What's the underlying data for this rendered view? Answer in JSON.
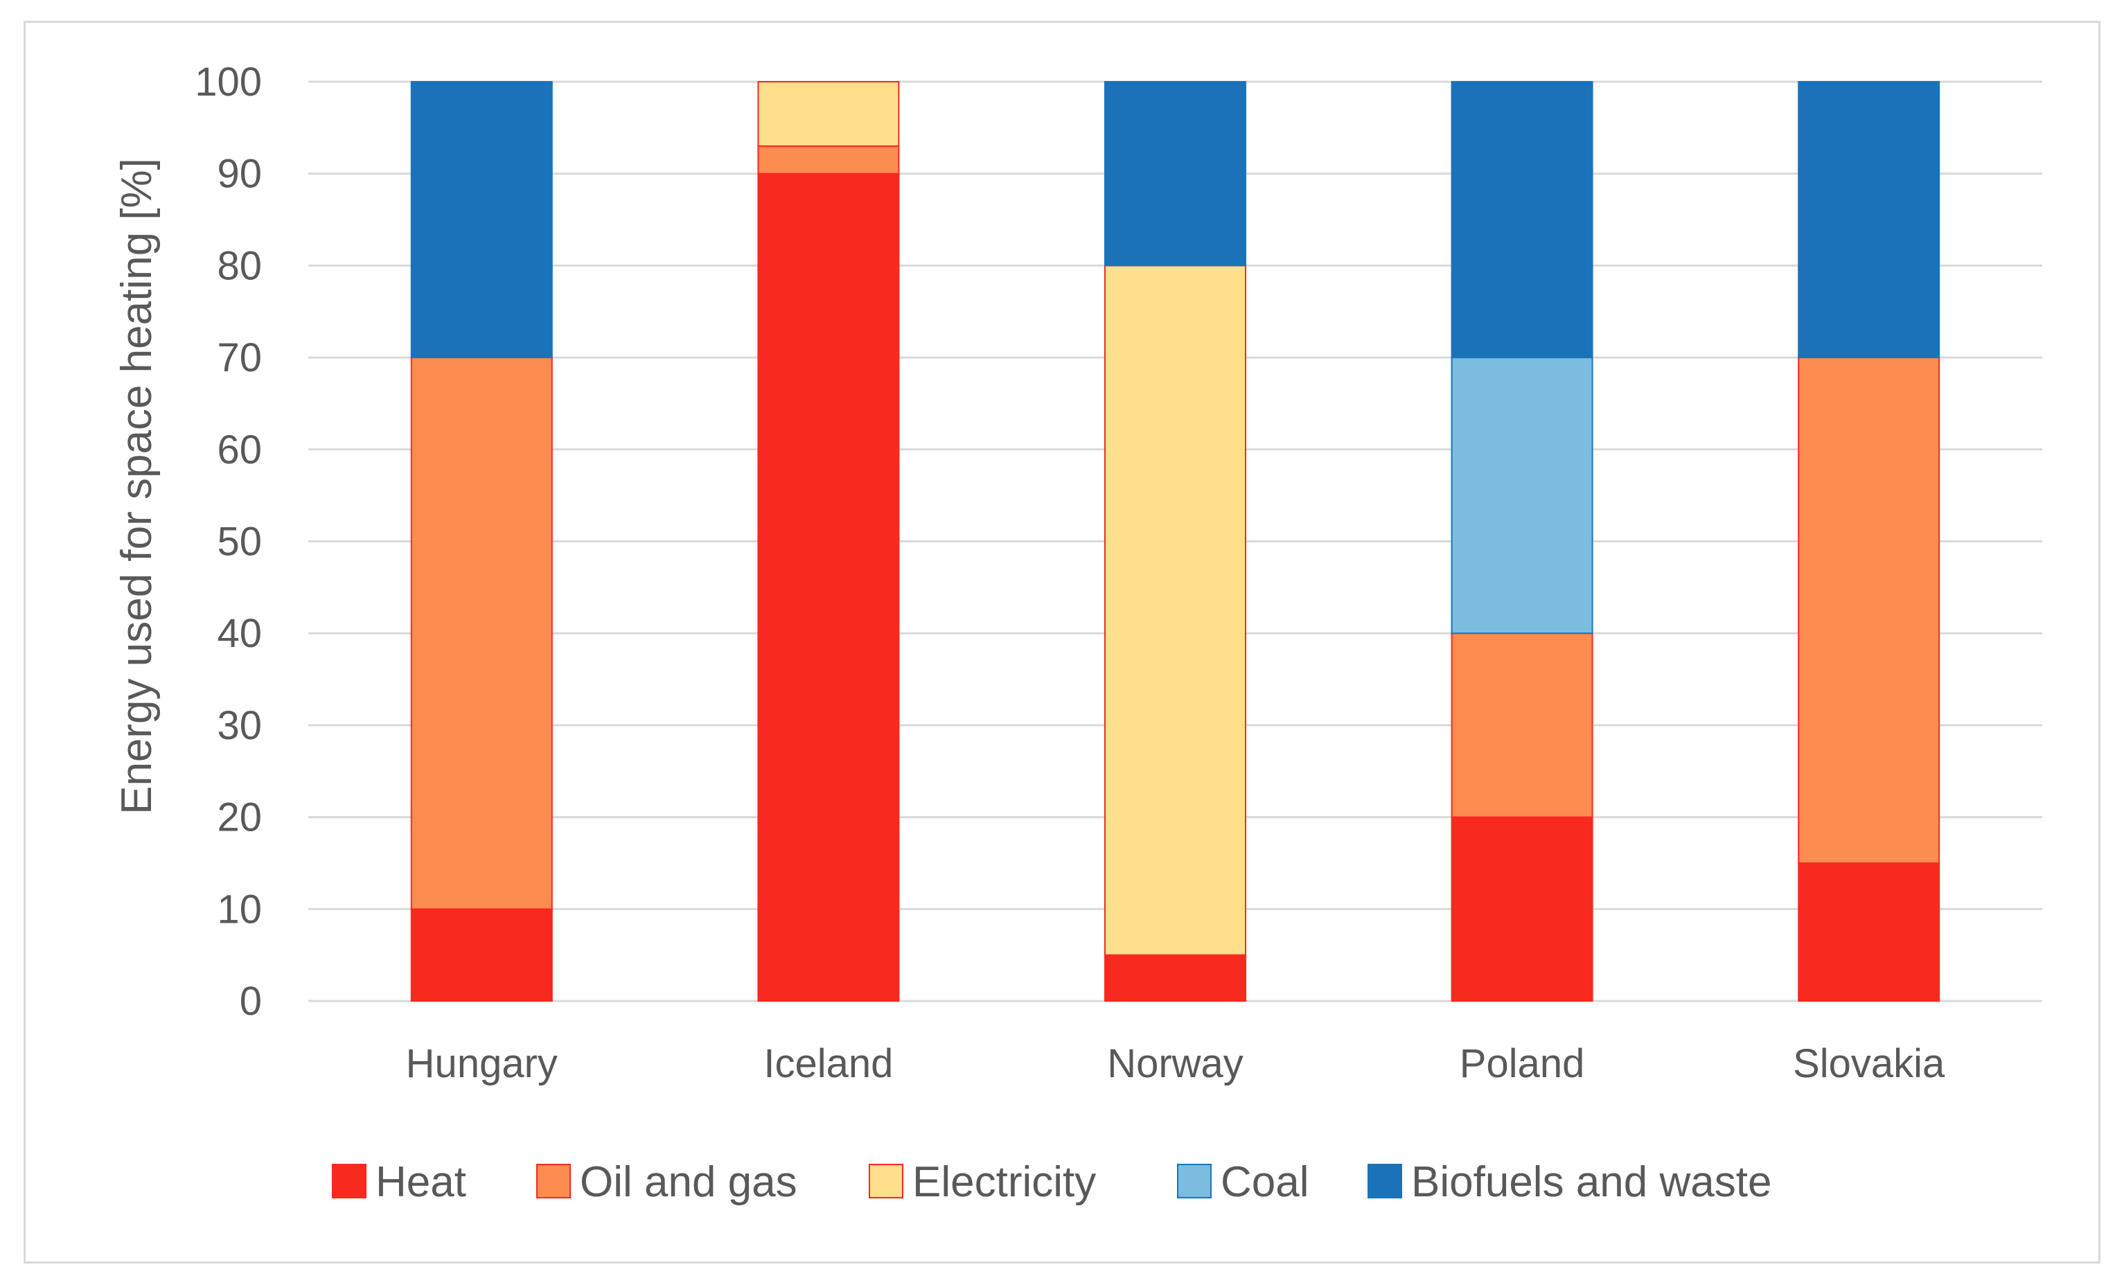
{
  "chart_data": {
    "type": "bar",
    "stacked": true,
    "title": "",
    "xlabel": "",
    "ylabel": "Energy used for space heating [%]",
    "ylim": [
      0,
      100
    ],
    "yticks": [
      0,
      10,
      20,
      30,
      40,
      50,
      60,
      70,
      80,
      90,
      100
    ],
    "grid": true,
    "legend_position": "bottom",
    "categories": [
      "Hungary",
      "Iceland",
      "Norway",
      "Poland",
      "Slovakia"
    ],
    "series": [
      {
        "name": "Heat",
        "color": "#f8291f",
        "values": [
          10,
          90,
          5,
          20,
          15
        ]
      },
      {
        "name": "Oil and gas",
        "color": "#fc8c50",
        "values": [
          60,
          3,
          0,
          20,
          55
        ]
      },
      {
        "name": "Electricity",
        "color": "#fedf8b",
        "values": [
          0,
          7,
          75,
          0,
          0
        ]
      },
      {
        "name": "Coal",
        "color": "#7bbcdf",
        "values": [
          0,
          0,
          0,
          30,
          0
        ]
      },
      {
        "name": "Biofuels and waste",
        "color": "#1a73b9",
        "values": [
          30,
          0,
          20,
          30,
          30
        ]
      }
    ]
  }
}
